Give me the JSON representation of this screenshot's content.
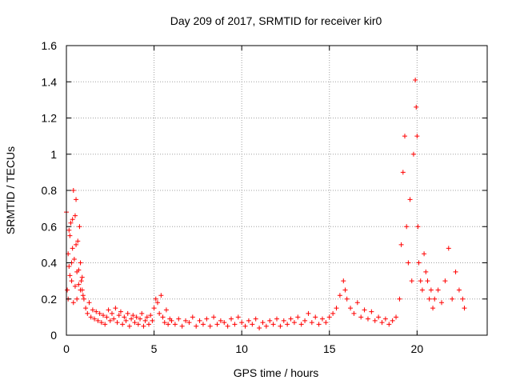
{
  "chart_data": {
    "type": "scatter",
    "title": "Day 209 of 2017, SRMTID for receiver kir0",
    "xlabel": "GPS time / hours",
    "ylabel": "SRMTID / TECUs",
    "xlim": [
      0,
      24
    ],
    "ylim": [
      0,
      1.6
    ],
    "x_ticks": [
      0,
      5,
      10,
      15,
      20
    ],
    "y_ticks": [
      0,
      0.2,
      0.4,
      0.6,
      0.8,
      1,
      1.2,
      1.4,
      1.6
    ],
    "x_tick_labels": [
      "0",
      "5",
      "10",
      "15",
      "20"
    ],
    "y_tick_labels": [
      "0",
      "0.2",
      "0.4",
      "0.6",
      "0.8",
      "1",
      "1.2",
      "1.4",
      "1.6"
    ],
    "grid": true,
    "marker": "+",
    "color": "#ff0000",
    "series": [
      {
        "name": "kir0",
        "points": [
          [
            0.0,
            0.68
          ],
          [
            0.05,
            0.25
          ],
          [
            0.1,
            0.45
          ],
          [
            0.15,
            0.38
          ],
          [
            0.2,
            0.55
          ],
          [
            0.25,
            0.62
          ],
          [
            0.3,
            0.3
          ],
          [
            0.35,
            0.48
          ],
          [
            0.4,
            0.8
          ],
          [
            0.45,
            0.42
          ],
          [
            0.5,
            0.66
          ],
          [
            0.55,
            0.75
          ],
          [
            0.6,
            0.35
          ],
          [
            0.65,
            0.52
          ],
          [
            0.7,
            0.28
          ],
          [
            0.75,
            0.6
          ],
          [
            0.8,
            0.4
          ],
          [
            0.85,
            0.3
          ],
          [
            0.9,
            0.25
          ],
          [
            0.95,
            0.22
          ],
          [
            0.1,
            0.2
          ],
          [
            0.2,
            0.33
          ],
          [
            0.3,
            0.4
          ],
          [
            0.4,
            0.18
          ],
          [
            0.5,
            0.27
          ],
          [
            0.6,
            0.2
          ],
          [
            0.7,
            0.36
          ],
          [
            0.8,
            0.25
          ],
          [
            0.9,
            0.32
          ],
          [
            0.15,
            0.58
          ],
          [
            0.35,
            0.64
          ],
          [
            0.55,
            0.5
          ],
          [
            1.0,
            0.2
          ],
          [
            1.1,
            0.15
          ],
          [
            1.2,
            0.12
          ],
          [
            1.3,
            0.18
          ],
          [
            1.4,
            0.1
          ],
          [
            1.5,
            0.14
          ],
          [
            1.6,
            0.09
          ],
          [
            1.7,
            0.13
          ],
          [
            1.8,
            0.08
          ],
          [
            1.9,
            0.12
          ],
          [
            2.0,
            0.07
          ],
          [
            2.1,
            0.11
          ],
          [
            2.2,
            0.06
          ],
          [
            2.3,
            0.1
          ],
          [
            2.4,
            0.14
          ],
          [
            2.5,
            0.08
          ],
          [
            2.6,
            0.12
          ],
          [
            2.7,
            0.09
          ],
          [
            2.8,
            0.15
          ],
          [
            2.9,
            0.07
          ],
          [
            3.0,
            0.11
          ],
          [
            3.1,
            0.13
          ],
          [
            3.2,
            0.06
          ],
          [
            3.3,
            0.1
          ],
          [
            3.4,
            0.08
          ],
          [
            3.5,
            0.12
          ],
          [
            3.6,
            0.05
          ],
          [
            3.7,
            0.09
          ],
          [
            3.8,
            0.11
          ],
          [
            3.9,
            0.07
          ],
          [
            4.0,
            0.1
          ],
          [
            4.1,
            0.06
          ],
          [
            4.2,
            0.09
          ],
          [
            4.3,
            0.12
          ],
          [
            4.4,
            0.05
          ],
          [
            4.5,
            0.08
          ],
          [
            4.6,
            0.1
          ],
          [
            4.7,
            0.06
          ],
          [
            4.8,
            0.11
          ],
          [
            4.9,
            0.08
          ],
          [
            5.0,
            0.15
          ],
          [
            5.1,
            0.2
          ],
          [
            5.2,
            0.18
          ],
          [
            5.3,
            0.12
          ],
          [
            5.4,
            0.22
          ],
          [
            5.5,
            0.1
          ],
          [
            5.6,
            0.07
          ],
          [
            5.7,
            0.14
          ],
          [
            5.8,
            0.06
          ],
          [
            5.9,
            0.09
          ],
          [
            6.0,
            0.08
          ],
          [
            6.2,
            0.06
          ],
          [
            6.4,
            0.09
          ],
          [
            6.6,
            0.05
          ],
          [
            6.8,
            0.08
          ],
          [
            7.0,
            0.07
          ],
          [
            7.2,
            0.1
          ],
          [
            7.4,
            0.05
          ],
          [
            7.6,
            0.08
          ],
          [
            7.8,
            0.06
          ],
          [
            8.0,
            0.09
          ],
          [
            8.2,
            0.05
          ],
          [
            8.4,
            0.1
          ],
          [
            8.6,
            0.06
          ],
          [
            8.8,
            0.08
          ],
          [
            9.0,
            0.07
          ],
          [
            9.2,
            0.05
          ],
          [
            9.4,
            0.09
          ],
          [
            9.6,
            0.06
          ],
          [
            9.8,
            0.1
          ],
          [
            10.0,
            0.07
          ],
          [
            10.2,
            0.05
          ],
          [
            10.4,
            0.08
          ],
          [
            10.6,
            0.06
          ],
          [
            10.8,
            0.09
          ],
          [
            11.0,
            0.04
          ],
          [
            11.2,
            0.07
          ],
          [
            11.4,
            0.05
          ],
          [
            11.6,
            0.08
          ],
          [
            11.8,
            0.06
          ],
          [
            12.0,
            0.09
          ],
          [
            12.2,
            0.05
          ],
          [
            12.4,
            0.08
          ],
          [
            12.6,
            0.06
          ],
          [
            12.8,
            0.09
          ],
          [
            13.0,
            0.07
          ],
          [
            13.2,
            0.1
          ],
          [
            13.4,
            0.06
          ],
          [
            13.6,
            0.08
          ],
          [
            13.8,
            0.12
          ],
          [
            14.0,
            0.07
          ],
          [
            14.2,
            0.1
          ],
          [
            14.4,
            0.06
          ],
          [
            14.6,
            0.09
          ],
          [
            14.8,
            0.07
          ],
          [
            15.0,
            0.1
          ],
          [
            15.2,
            0.12
          ],
          [
            15.4,
            0.15
          ],
          [
            15.6,
            0.22
          ],
          [
            15.8,
            0.3
          ],
          [
            15.9,
            0.25
          ],
          [
            16.0,
            0.2
          ],
          [
            16.2,
            0.15
          ],
          [
            16.4,
            0.12
          ],
          [
            16.6,
            0.18
          ],
          [
            16.8,
            0.1
          ],
          [
            17.0,
            0.14
          ],
          [
            17.2,
            0.09
          ],
          [
            17.4,
            0.13
          ],
          [
            17.6,
            0.08
          ],
          [
            17.8,
            0.1
          ],
          [
            18.0,
            0.07
          ],
          [
            18.2,
            0.09
          ],
          [
            18.4,
            0.06
          ],
          [
            18.6,
            0.08
          ],
          [
            18.8,
            0.1
          ],
          [
            19.0,
            0.2
          ],
          [
            19.1,
            0.5
          ],
          [
            19.2,
            0.9
          ],
          [
            19.3,
            1.1
          ],
          [
            19.4,
            0.6
          ],
          [
            19.5,
            0.4
          ],
          [
            19.6,
            0.75
          ],
          [
            19.7,
            0.3
          ],
          [
            19.8,
            1.0
          ],
          [
            19.9,
            1.41
          ],
          [
            19.95,
            1.26
          ],
          [
            20.0,
            1.1
          ],
          [
            20.05,
            0.6
          ],
          [
            20.1,
            0.4
          ],
          [
            20.2,
            0.3
          ],
          [
            20.3,
            0.25
          ],
          [
            20.4,
            0.45
          ],
          [
            20.5,
            0.35
          ],
          [
            20.6,
            0.3
          ],
          [
            20.7,
            0.2
          ],
          [
            20.8,
            0.25
          ],
          [
            20.9,
            0.15
          ],
          [
            21.0,
            0.2
          ],
          [
            21.2,
            0.25
          ],
          [
            21.4,
            0.18
          ],
          [
            21.6,
            0.3
          ],
          [
            21.8,
            0.48
          ],
          [
            22.0,
            0.2
          ],
          [
            22.2,
            0.35
          ],
          [
            22.4,
            0.25
          ],
          [
            22.6,
            0.2
          ],
          [
            22.7,
            0.15
          ]
        ]
      }
    ]
  }
}
